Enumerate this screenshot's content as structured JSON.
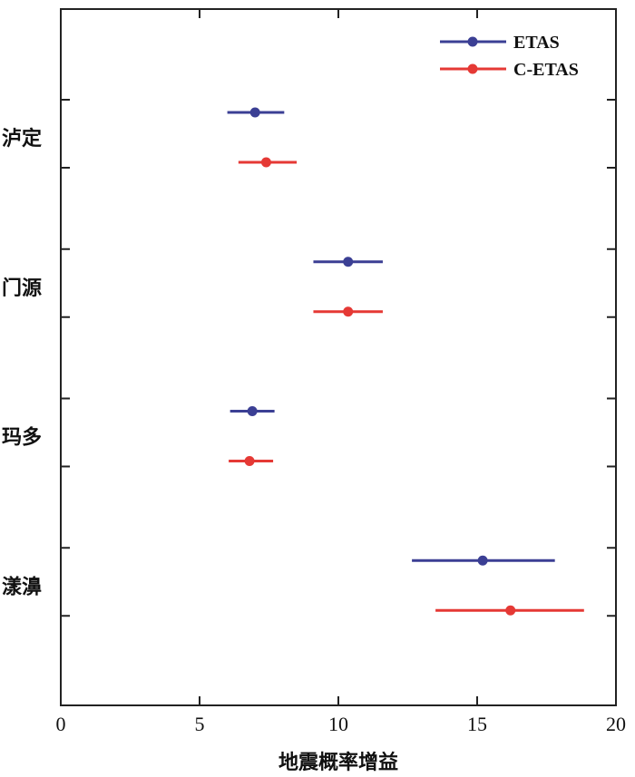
{
  "chart_data": {
    "type": "scatter",
    "orientation": "horizontal",
    "title": "",
    "xlabel": "地震概率增益",
    "ylabel": "",
    "xlim": [
      0,
      20
    ],
    "xticks": [
      0,
      5,
      10,
      15,
      20
    ],
    "grid": false,
    "legend_position": "top-right",
    "categories": [
      "泸定",
      "门源",
      "玛多",
      "漾濞"
    ],
    "series": [
      {
        "name": "ETAS",
        "color": "#3b3f94",
        "values": [
          7.0,
          10.35,
          6.9,
          15.2
        ],
        "lower": [
          6.0,
          9.1,
          6.1,
          12.65
        ],
        "upper": [
          8.05,
          11.6,
          7.7,
          17.8
        ]
      },
      {
        "name": "C-ETAS",
        "color": "#e53935",
        "values": [
          7.4,
          10.35,
          6.8,
          16.2
        ],
        "lower": [
          6.4,
          9.1,
          6.05,
          13.5
        ],
        "upper": [
          8.5,
          11.6,
          7.65,
          18.85
        ]
      }
    ]
  }
}
